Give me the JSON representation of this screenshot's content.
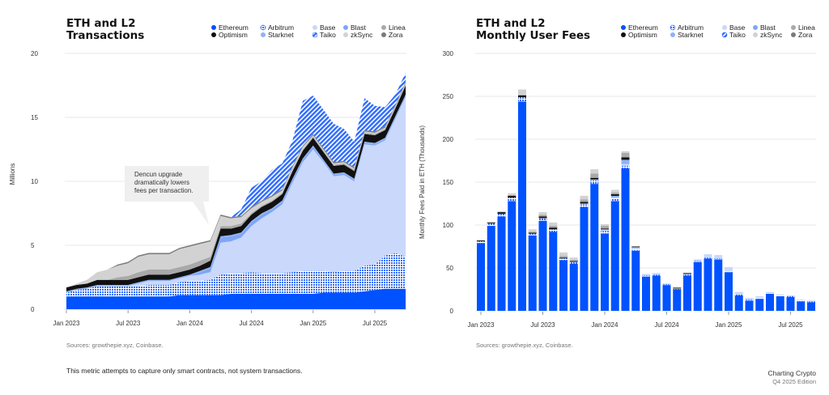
{
  "colors": {
    "Ethereum": "#0052ff",
    "Arbitrum": "pattern-dots",
    "Base": "#c9d8fb",
    "Blast": "#7fa6f6",
    "Linea": "#a9a9a9",
    "Optimism": "#111111",
    "Starknet": "#8fb2f8",
    "Taiko": "pattern-hatch",
    "zkSync": "#d2d2d2",
    "Zora": "#7a7a7a",
    "grid": "#e6e9ea"
  },
  "legend": [
    "Ethereum",
    "Arbitrum",
    "Base",
    "Blast",
    "Linea",
    "Optimism",
    "Starknet",
    "Taiko",
    "zkSync",
    "Zora"
  ],
  "footer": {
    "note": "This metric attempts to capture only smart contracts, not system transactions.",
    "brand": "Charting Crypto",
    "edition": "Q4 2025 Edition"
  },
  "chart_data": [
    {
      "type": "area",
      "stacked": true,
      "title_line1": "ETH and L2",
      "title_line2": "Transactions",
      "ylabel": "Millions",
      "ylim": [
        0,
        20
      ],
      "yticks": [
        "0",
        "5",
        "10",
        "15",
        "20"
      ],
      "xticks": [
        "Jan 2023",
        "Jul 2023",
        "Jan 2024",
        "Jul 2024",
        "Jan 2025",
        "Jul 2025"
      ],
      "grid": true,
      "legend_position": "top-right",
      "source": "Sources: growthepie.xyz, Coinbase.",
      "annotation": [
        "Dencun upgrade",
        "dramatically lowers",
        "fees per transaction."
      ],
      "x": [
        "2023-01",
        "2023-02",
        "2023-03",
        "2023-04",
        "2023-05",
        "2023-06",
        "2023-07",
        "2023-08",
        "2023-09",
        "2023-10",
        "2023-11",
        "2023-12",
        "2024-01",
        "2024-02",
        "2024-03",
        "2024-04",
        "2024-05",
        "2024-06",
        "2024-07",
        "2024-08",
        "2024-09",
        "2024-10",
        "2024-11",
        "2024-12",
        "2025-01",
        "2025-02",
        "2025-03",
        "2025-04",
        "2025-05",
        "2025-06",
        "2025-07",
        "2025-08",
        "2025-09",
        "2025-10"
      ],
      "series": [
        {
          "name": "Ethereum",
          "values": [
            1.0,
            1.0,
            1.0,
            1.0,
            1.0,
            1.0,
            1.0,
            1.0,
            1.0,
            1.0,
            1.0,
            1.1,
            1.1,
            1.1,
            1.1,
            1.1,
            1.2,
            1.2,
            1.2,
            1.2,
            1.2,
            1.2,
            1.2,
            1.2,
            1.2,
            1.3,
            1.3,
            1.3,
            1.3,
            1.4,
            1.5,
            1.6,
            1.6,
            1.6
          ]
        },
        {
          "name": "Arbitrum",
          "values": [
            0.3,
            0.5,
            0.6,
            0.8,
            0.8,
            0.8,
            0.8,
            0.8,
            0.9,
            0.9,
            0.9,
            1.0,
            1.1,
            1.1,
            1.2,
            1.6,
            1.6,
            1.6,
            1.7,
            1.6,
            1.6,
            1.6,
            1.7,
            1.8,
            1.8,
            1.7,
            1.6,
            1.7,
            1.7,
            2.0,
            2.0,
            2.6,
            2.8,
            2.5
          ]
        },
        {
          "name": "Base",
          "values": [
            0,
            0,
            0,
            0,
            0,
            0,
            0,
            0.2,
            0.3,
            0.3,
            0.3,
            0.3,
            0.4,
            0.5,
            0.6,
            2.5,
            2.5,
            2.8,
            3.6,
            4.3,
            4.8,
            5.4,
            7.0,
            8.5,
            9.5,
            8.5,
            7.5,
            7.5,
            7.0,
            9.5,
            9.3,
            9.0,
            10.5,
            12.5
          ]
        },
        {
          "name": "Blast",
          "values": [
            0,
            0,
            0,
            0,
            0,
            0,
            0,
            0,
            0,
            0,
            0,
            0,
            0,
            0.2,
            0.3,
            0.4,
            0.4,
            0.3,
            0.3,
            0.3,
            0.2,
            0.2,
            0.2,
            0.2,
            0.2,
            0.1,
            0.1,
            0.1,
            0.1,
            0.1,
            0.1,
            0.1,
            0.1,
            0.1
          ]
        },
        {
          "name": "Starknet",
          "values": [
            0.1,
            0.1,
            0.1,
            0.1,
            0.1,
            0.1,
            0.1,
            0.1,
            0.1,
            0.1,
            0.1,
            0.1,
            0.1,
            0.1,
            0.1,
            0.1,
            0.1,
            0.1,
            0.1,
            0.1,
            0.1,
            0.1,
            0.1,
            0.1,
            0.1,
            0.1,
            0.1,
            0.1,
            0.1,
            0.1,
            0.1,
            0.1,
            0.1,
            0.1
          ]
        },
        {
          "name": "Optimism",
          "values": [
            0.3,
            0.3,
            0.3,
            0.4,
            0.4,
            0.4,
            0.4,
            0.4,
            0.4,
            0.4,
            0.4,
            0.4,
            0.4,
            0.4,
            0.5,
            0.6,
            0.5,
            0.5,
            0.5,
            0.5,
            0.5,
            0.5,
            0.6,
            0.6,
            0.6,
            0.6,
            0.6,
            0.6,
            0.6,
            0.6,
            0.6,
            0.6,
            0.6,
            0.7
          ]
        },
        {
          "name": "Linea",
          "values": [
            0,
            0,
            0,
            0,
            0,
            0.2,
            0.3,
            0.4,
            0.4,
            0.4,
            0.4,
            0.4,
            0.4,
            0.4,
            0.3,
            0.2,
            0.2,
            0.2,
            0.1,
            0.1,
            0.1,
            0.1,
            0.1,
            0.1,
            0.1,
            0.1,
            0.1,
            0.1,
            0.1,
            0.1,
            0.1,
            0.1,
            0.1,
            0.1
          ]
        },
        {
          "name": "zkSync",
          "values": [
            0,
            0.1,
            0.3,
            0.6,
            0.8,
            0.9,
            1.0,
            1.2,
            1.2,
            1.2,
            1.2,
            1.4,
            1.4,
            1.3,
            1.2,
            0.8,
            0.6,
            0.5,
            0.4,
            0.3,
            0.3,
            0.2,
            0.2,
            0.2,
            0.1,
            0.1,
            0.1,
            0.1,
            0.1,
            0.1,
            0.1,
            0.1,
            0.1,
            0.1
          ]
        },
        {
          "name": "Zora",
          "values": [
            0,
            0,
            0,
            0,
            0,
            0.1,
            0.1,
            0.1,
            0.1,
            0.1,
            0.1,
            0.1,
            0.1,
            0.1,
            0.1,
            0.1,
            0.1,
            0.1,
            0.1,
            0.1,
            0.1,
            0.1,
            0.1,
            0.1,
            0.1,
            0.1,
            0.1,
            0.1,
            0.1,
            0.1,
            0.1,
            0.1,
            0.1,
            0.1
          ]
        },
        {
          "name": "Taiko",
          "values": [
            0,
            0,
            0,
            0,
            0,
            0,
            0,
            0,
            0,
            0,
            0,
            0,
            0,
            0,
            0,
            0,
            0,
            0.5,
            1.5,
            1.5,
            2.0,
            2.0,
            2.0,
            3.5,
            3.0,
            3.0,
            3.0,
            2.5,
            2.0,
            2.5,
            2.0,
            1.5,
            0.8,
            0.7
          ]
        }
      ]
    },
    {
      "type": "bar",
      "stacked": true,
      "title_line1": "ETH and L2",
      "title_line2": "Monthly User Fees",
      "ylabel": "Monthly Fees Paid in ETH (Thousands)",
      "ylim": [
        0,
        300
      ],
      "yticks": [
        "0",
        "50",
        "100",
        "150",
        "200",
        "250",
        "300"
      ],
      "xticks": [
        "Jan 2023",
        "Jul 2023",
        "Jan 2024",
        "Jul 2024",
        "Jan 2025",
        "Jul 2025"
      ],
      "grid": true,
      "legend_position": "top-right",
      "source": "Sources: growthepie.xyz, Coinbase.",
      "categories": [
        "2023-01",
        "2023-02",
        "2023-03",
        "2023-04",
        "2023-05",
        "2023-06",
        "2023-07",
        "2023-08",
        "2023-09",
        "2023-10",
        "2023-11",
        "2023-12",
        "2024-01",
        "2024-02",
        "2024-03",
        "2024-04",
        "2024-05",
        "2024-06",
        "2024-07",
        "2024-08",
        "2024-09",
        "2024-10",
        "2024-11",
        "2024-12",
        "2025-01",
        "2025-02",
        "2025-03",
        "2025-04",
        "2025-05",
        "2025-06",
        "2025-07",
        "2025-08",
        "2025-09"
      ],
      "series": [
        {
          "name": "Ethereum",
          "values": [
            79,
            99,
            110,
            128,
            244,
            88,
            105,
            92,
            59,
            55,
            121,
            148,
            90,
            128,
            166,
            70,
            40,
            41,
            30,
            25,
            41,
            57,
            61,
            60,
            45,
            18,
            12,
            14,
            20,
            17,
            16,
            11,
            10
          ]
        },
        {
          "name": "Arbitrum",
          "values": [
            2,
            3,
            3,
            4,
            5,
            2,
            3,
            3,
            2,
            2,
            3,
            4,
            3,
            3,
            3,
            2,
            1,
            1,
            1,
            1,
            1,
            1,
            1,
            1,
            1,
            1,
            1,
            1,
            1,
            1,
            1,
            1,
            1
          ]
        },
        {
          "name": "Base",
          "values": [
            0,
            0,
            0,
            0,
            0,
            0,
            0,
            0,
            0,
            0,
            1,
            1,
            1,
            1,
            2,
            2,
            2,
            2,
            1,
            0,
            1,
            2,
            4,
            4,
            5,
            3,
            2,
            2,
            1,
            1,
            1,
            1,
            1
          ]
        },
        {
          "name": "Starknet",
          "values": [
            0,
            0,
            0,
            0,
            0,
            0,
            0,
            0,
            0,
            0,
            0,
            0,
            1,
            2,
            5,
            0,
            0,
            0,
            0,
            0,
            0,
            0,
            0,
            0,
            0,
            0,
            0,
            0,
            0,
            0,
            0,
            0,
            0
          ]
        },
        {
          "name": "Optimism",
          "values": [
            1,
            1,
            2,
            2,
            2,
            1,
            2,
            2,
            1,
            1,
            2,
            2,
            1,
            2,
            3,
            1,
            0,
            0,
            0,
            1,
            1,
            0,
            0,
            0,
            0,
            0,
            0,
            0,
            0,
            0,
            0,
            0,
            0
          ]
        },
        {
          "name": "Linea",
          "values": [
            0,
            0,
            0,
            1,
            1,
            1,
            2,
            2,
            2,
            1,
            3,
            5,
            3,
            2,
            5,
            0,
            0,
            0,
            0,
            0,
            0,
            0,
            0,
            0,
            0,
            0,
            0,
            0,
            0,
            0,
            0,
            0,
            0
          ]
        },
        {
          "name": "zkSync",
          "values": [
            0,
            0,
            1,
            2,
            6,
            3,
            3,
            4,
            4,
            3,
            4,
            5,
            2,
            3,
            2,
            0,
            0,
            0,
            0,
            0,
            0,
            0,
            0,
            0,
            0,
            0,
            0,
            0,
            0,
            0,
            0,
            0,
            0
          ]
        }
      ]
    }
  ]
}
